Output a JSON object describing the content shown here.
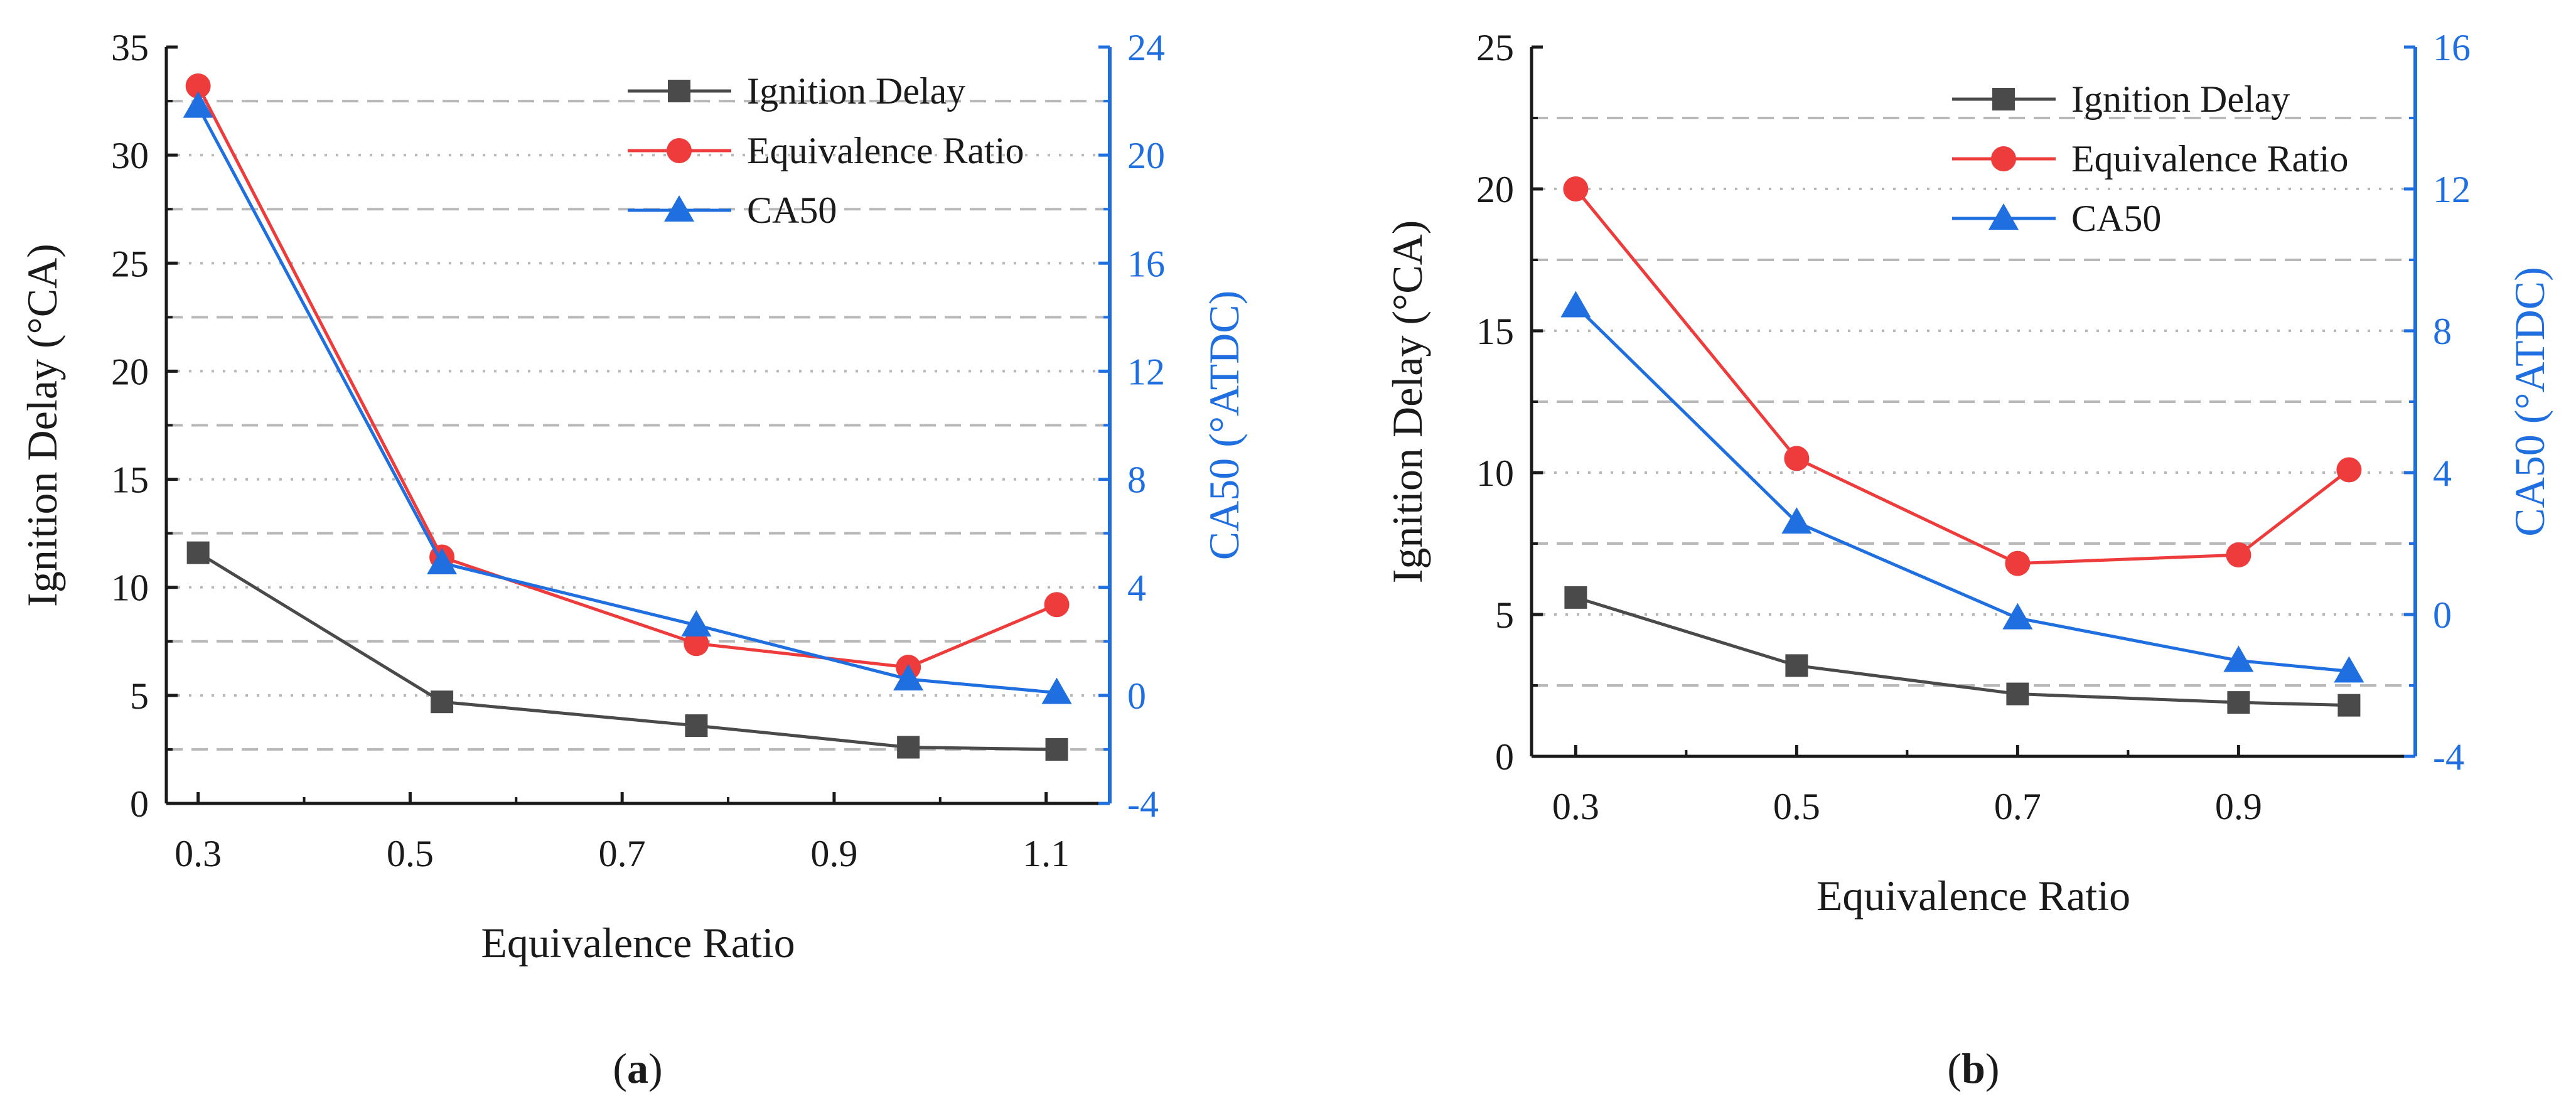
{
  "colors": {
    "ignition_delay": "#4a4a4a",
    "equivalence_ratio": "#ee3b3b",
    "ca50": "#1f6fe0",
    "grid": "#b8b8b8",
    "axis": "#1a1a1a",
    "right_axis": "#1f6fe0"
  },
  "panels": [
    {
      "label_prefix": "(",
      "label_letter": "a",
      "label_suffix": ")"
    },
    {
      "label_prefix": "(",
      "label_letter": "b",
      "label_suffix": ")"
    }
  ],
  "chart_data": [
    {
      "type": "line",
      "panel": "a",
      "xlabel": "Equivalence Ratio",
      "ylabel": "Ignition Delay (°CA)",
      "y2label": "CA50 (°ATDC)",
      "xlim": [
        0.27,
        1.16
      ],
      "ylim": [
        0,
        35
      ],
      "y2lim": [
        -4,
        24
      ],
      "xticks": [
        0.3,
        0.5,
        0.7,
        0.9,
        1.1
      ],
      "xtick_labels": [
        "0.3",
        "0.5",
        "0.7",
        "0.9",
        "1.1"
      ],
      "yticks": [
        0,
        5,
        10,
        15,
        20,
        25,
        30,
        35
      ],
      "ytick_labels": [
        "0",
        "5",
        "10",
        "15",
        "20",
        "25",
        "30",
        "35"
      ],
      "y2ticks": [
        -4,
        0,
        4,
        8,
        12,
        16,
        20,
        24
      ],
      "y2tick_labels": [
        "-4",
        "0",
        "4",
        "8",
        "12",
        "16",
        "20",
        "24"
      ],
      "series": [
        {
          "name": "Ignition Delay",
          "axis": "left",
          "marker": "square",
          "x": [
            0.3,
            0.53,
            0.77,
            0.97,
            1.11
          ],
          "values": [
            11.6,
            4.7,
            3.6,
            2.6,
            2.5
          ]
        },
        {
          "name": "Equivalence Ratio",
          "axis": "left",
          "marker": "circle",
          "x": [
            0.3,
            0.53,
            0.77,
            0.97,
            1.11
          ],
          "values": [
            33.2,
            11.4,
            7.4,
            6.3,
            9.2
          ]
        },
        {
          "name": "CA50",
          "axis": "right",
          "marker": "triangle",
          "x": [
            0.3,
            0.53,
            0.77,
            0.97,
            1.11
          ],
          "values": [
            21.8,
            4.9,
            2.6,
            0.6,
            0.1
          ]
        }
      ]
    },
    {
      "type": "line",
      "panel": "b",
      "xlabel": "Equivalence Ratio",
      "ylabel": "Ignition Delay (°CA)",
      "y2label": "CA50 (°ATDC)",
      "xlim": [
        0.26,
        1.06
      ],
      "ylim": [
        0,
        25
      ],
      "y2lim": [
        -4,
        16
      ],
      "xticks": [
        0.3,
        0.5,
        0.7,
        0.9
      ],
      "xtick_labels": [
        "0.3",
        "0.5",
        "0.7",
        "0.9"
      ],
      "yticks": [
        0,
        5,
        10,
        15,
        20,
        25
      ],
      "ytick_labels": [
        "0",
        "5",
        "10",
        "15",
        "20",
        "25"
      ],
      "y2ticks": [
        -4,
        0,
        4,
        8,
        12,
        16
      ],
      "y2tick_labels": [
        "-4",
        "0",
        "4",
        "8",
        "12",
        "16"
      ],
      "series": [
        {
          "name": "Ignition Delay",
          "axis": "left",
          "marker": "square",
          "x": [
            0.3,
            0.5,
            0.7,
            0.9,
            1.0
          ],
          "values": [
            5.6,
            3.2,
            2.2,
            1.9,
            1.8
          ]
        },
        {
          "name": "Equivalence Ratio",
          "axis": "left",
          "marker": "circle",
          "x": [
            0.3,
            0.5,
            0.7,
            0.9,
            1.0
          ],
          "values": [
            20.0,
            10.5,
            6.8,
            7.1,
            10.1
          ]
        },
        {
          "name": "CA50",
          "axis": "right",
          "marker": "triangle",
          "x": [
            0.3,
            0.5,
            0.7,
            0.9,
            1.0
          ],
          "values": [
            8.7,
            2.6,
            -0.1,
            -1.3,
            -1.6
          ]
        }
      ]
    }
  ]
}
